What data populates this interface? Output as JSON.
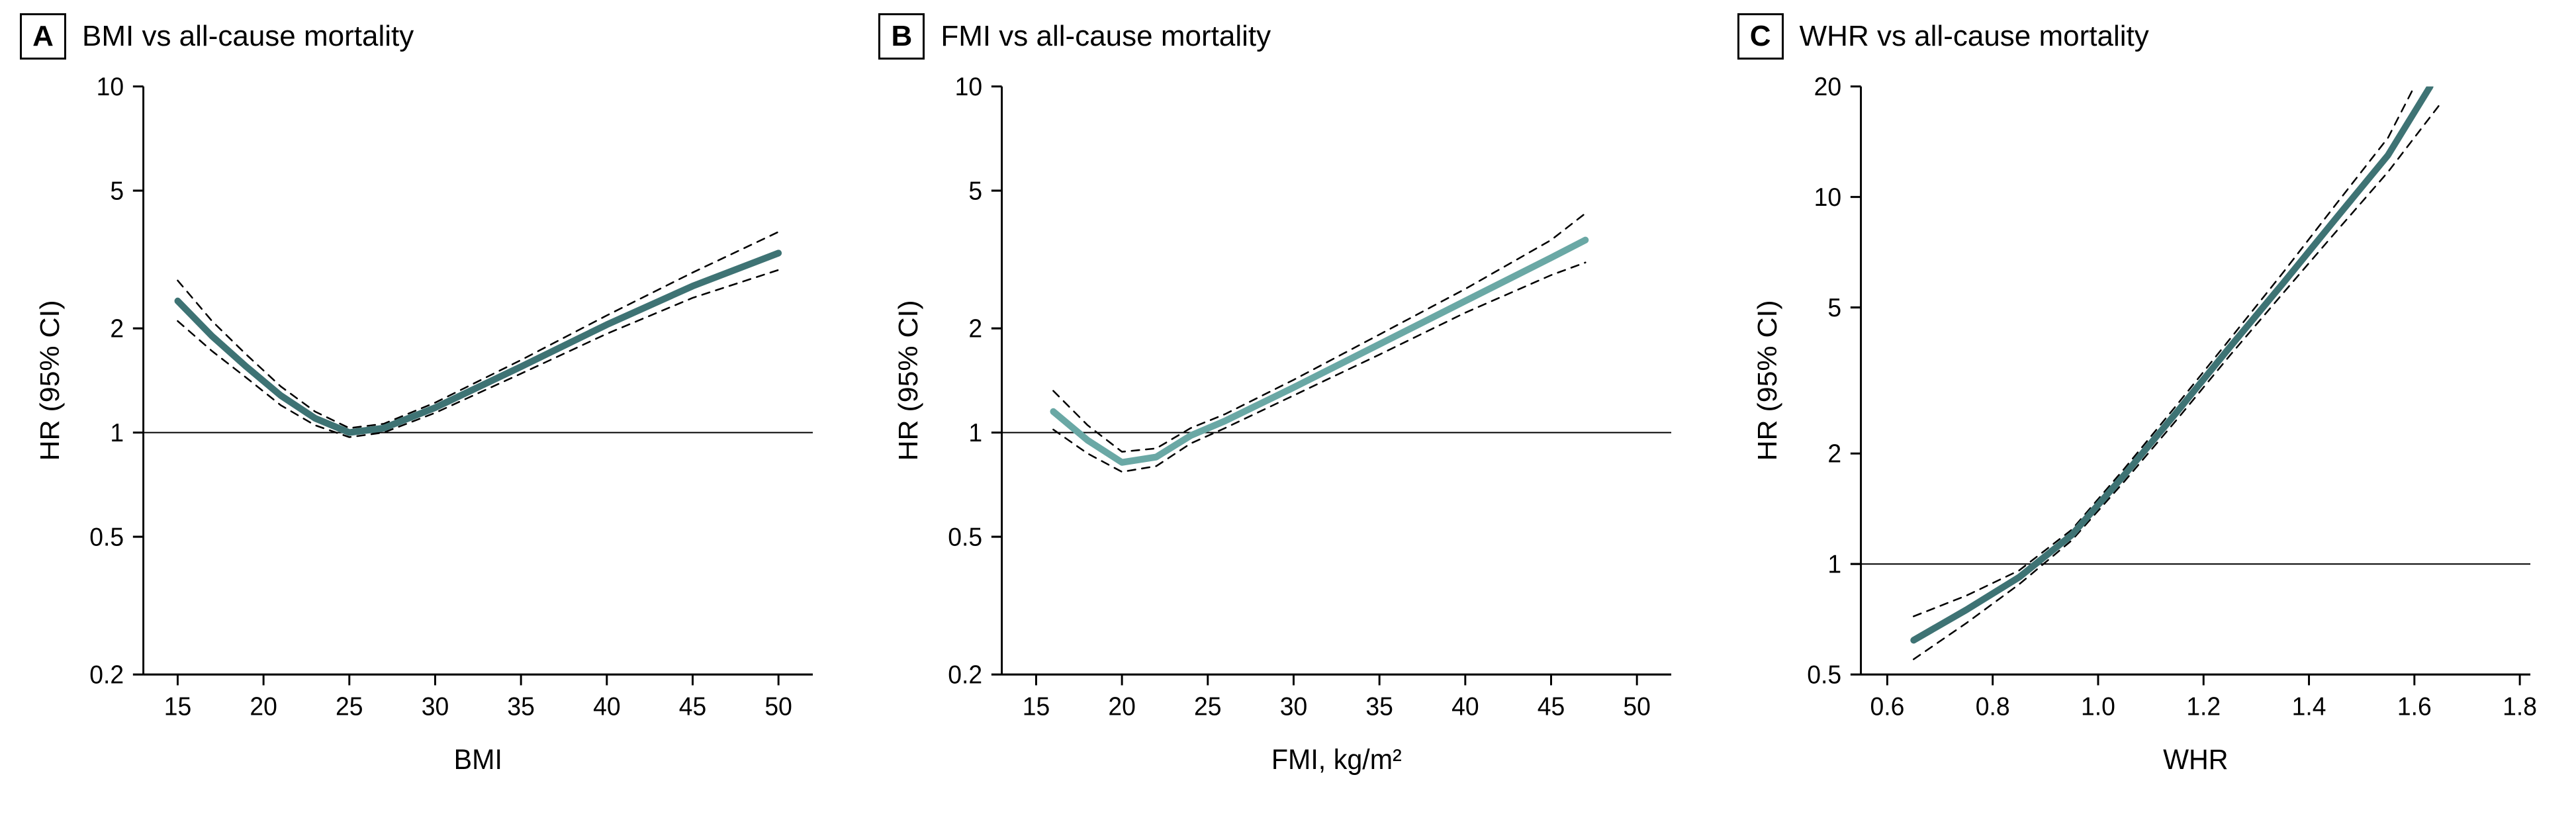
{
  "figure": {
    "background_color": "#ffffff",
    "text_color": "#000000",
    "letter_box_border": "#000000",
    "panels": [
      {
        "letter": "A",
        "title": "BMI vs all-cause mortality",
        "type": "line",
        "x_label": "BMI",
        "y_label": "HR (95% CI)",
        "x_scale": "linear",
        "y_scale": "log",
        "xlim": [
          13,
          52
        ],
        "ylim": [
          0.2,
          10
        ],
        "x_ticks": [
          15,
          20,
          25,
          30,
          35,
          40,
          45,
          50
        ],
        "y_ticks": [
          0.2,
          0.5,
          1,
          2,
          5,
          10
        ],
        "reference_y": 1,
        "series_color": "#3e7374",
        "series_width": 10,
        "ci_color": "#000000",
        "ci_width": 2.5,
        "ci_dash": "12,10",
        "tick_fontsize": 38,
        "label_fontsize": 42,
        "main": {
          "x": [
            15,
            17,
            19,
            21,
            23,
            25,
            27,
            30,
            35,
            40,
            45,
            50
          ],
          "y": [
            2.4,
            1.9,
            1.55,
            1.28,
            1.1,
            1.0,
            1.03,
            1.18,
            1.55,
            2.05,
            2.65,
            3.3
          ]
        },
        "upper": {
          "x": [
            15,
            17,
            19,
            21,
            23,
            25,
            27,
            30,
            35,
            40,
            45,
            50
          ],
          "y": [
            2.75,
            2.1,
            1.68,
            1.36,
            1.15,
            1.03,
            1.06,
            1.22,
            1.62,
            2.18,
            2.9,
            3.8
          ]
        },
        "lower": {
          "x": [
            15,
            17,
            19,
            21,
            23,
            25,
            27,
            30,
            35,
            40,
            45,
            50
          ],
          "y": [
            2.1,
            1.72,
            1.44,
            1.2,
            1.05,
            0.97,
            1.0,
            1.14,
            1.48,
            1.93,
            2.45,
            2.95
          ]
        }
      },
      {
        "letter": "B",
        "title": "FMI vs all-cause mortality",
        "type": "line",
        "x_label": "FMI, kg/m²",
        "y_label": "HR (95% CI)",
        "x_scale": "linear",
        "y_scale": "log",
        "xlim": [
          13,
          52
        ],
        "ylim": [
          0.2,
          10
        ],
        "x_ticks": [
          15,
          20,
          25,
          30,
          35,
          40,
          45,
          50
        ],
        "y_ticks": [
          0.2,
          0.5,
          1,
          2,
          5,
          10
        ],
        "reference_y": 1,
        "series_color": "#6aa8a5",
        "series_width": 10,
        "ci_color": "#000000",
        "ci_width": 2.5,
        "ci_dash": "12,10",
        "tick_fontsize": 38,
        "label_fontsize": 42,
        "main": {
          "x": [
            16,
            18,
            20,
            22,
            24,
            26,
            30,
            35,
            40,
            45,
            47
          ],
          "y": [
            1.15,
            0.95,
            0.82,
            0.85,
            0.98,
            1.08,
            1.35,
            1.8,
            2.4,
            3.2,
            3.6
          ]
        },
        "upper": {
          "x": [
            16,
            18,
            20,
            22,
            24,
            26,
            30,
            35,
            40,
            45,
            47
          ],
          "y": [
            1.32,
            1.05,
            0.88,
            0.9,
            1.03,
            1.13,
            1.42,
            1.92,
            2.6,
            3.6,
            4.3
          ]
        },
        "lower": {
          "x": [
            16,
            18,
            20,
            22,
            24,
            26,
            30,
            35,
            40,
            45,
            47
          ],
          "y": [
            1.02,
            0.87,
            0.77,
            0.8,
            0.93,
            1.03,
            1.28,
            1.68,
            2.22,
            2.85,
            3.1
          ]
        }
      },
      {
        "letter": "C",
        "title": "WHR vs all-cause mortality",
        "type": "line",
        "x_label": "WHR",
        "y_label": "HR (95% CI)",
        "x_scale": "linear",
        "y_scale": "log",
        "xlim": [
          0.55,
          1.82
        ],
        "ylim": [
          0.5,
          20
        ],
        "x_ticks": [
          0.6,
          0.8,
          1.0,
          1.2,
          1.4,
          1.6,
          1.8
        ],
        "y_ticks": [
          0.5,
          1,
          2,
          5,
          10,
          20
        ],
        "x_tick_decimals": 1,
        "reference_y": 1,
        "series_color": "#3e7374",
        "series_width": 10,
        "ci_color": "#000000",
        "ci_width": 2.5,
        "ci_dash": "12,10",
        "tick_fontsize": 38,
        "label_fontsize": 42,
        "main": {
          "x": [
            0.65,
            0.75,
            0.85,
            0.95,
            1.05,
            1.15,
            1.25,
            1.35,
            1.45,
            1.55,
            1.63
          ],
          "y": [
            0.62,
            0.75,
            0.92,
            1.2,
            1.75,
            2.6,
            3.9,
            5.8,
            8.7,
            13.0,
            20.0
          ]
        },
        "upper": {
          "x": [
            0.65,
            0.75,
            0.85,
            0.95,
            1.05,
            1.15,
            1.25,
            1.35,
            1.45,
            1.55,
            1.6
          ],
          "y": [
            0.72,
            0.82,
            0.96,
            1.24,
            1.82,
            2.72,
            4.1,
            6.2,
            9.5,
            14.5,
            20.0
          ]
        },
        "lower": {
          "x": [
            0.65,
            0.75,
            0.85,
            0.95,
            1.05,
            1.15,
            1.25,
            1.35,
            1.45,
            1.55,
            1.65
          ],
          "y": [
            0.55,
            0.69,
            0.88,
            1.16,
            1.68,
            2.48,
            3.7,
            5.45,
            8.0,
            11.7,
            18.0
          ]
        }
      }
    ]
  }
}
